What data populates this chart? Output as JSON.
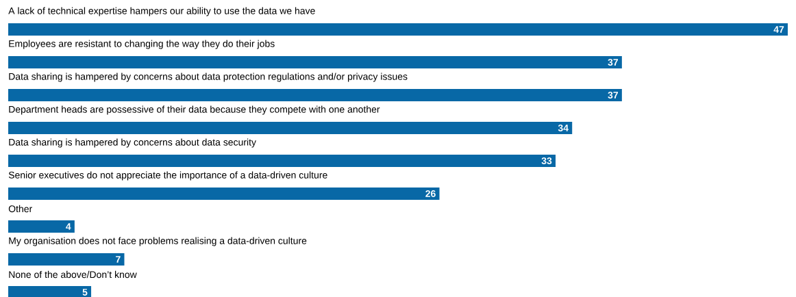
{
  "chart_data": {
    "type": "bar",
    "orientation": "horizontal",
    "color": "#0868a6",
    "data_labels": true,
    "categories": [
      "A lack of technical expertise hampers our ability to use the data we have",
      "Employees are resistant to changing the way they do their jobs",
      "Data sharing is hampered by concerns about data protection regulations and/or privacy issues",
      "Department heads are possessive of their data because they compete with one another",
      "Data sharing is hampered by concerns about data security",
      "Senior executives do not appreciate the importance of a data-driven culture",
      "Other",
      "My organisation does not face problems realising a data-driven culture",
      "None of the above/Don’t know"
    ],
    "values": [
      47,
      37,
      37,
      34,
      33,
      26,
      4,
      7,
      5
    ]
  }
}
